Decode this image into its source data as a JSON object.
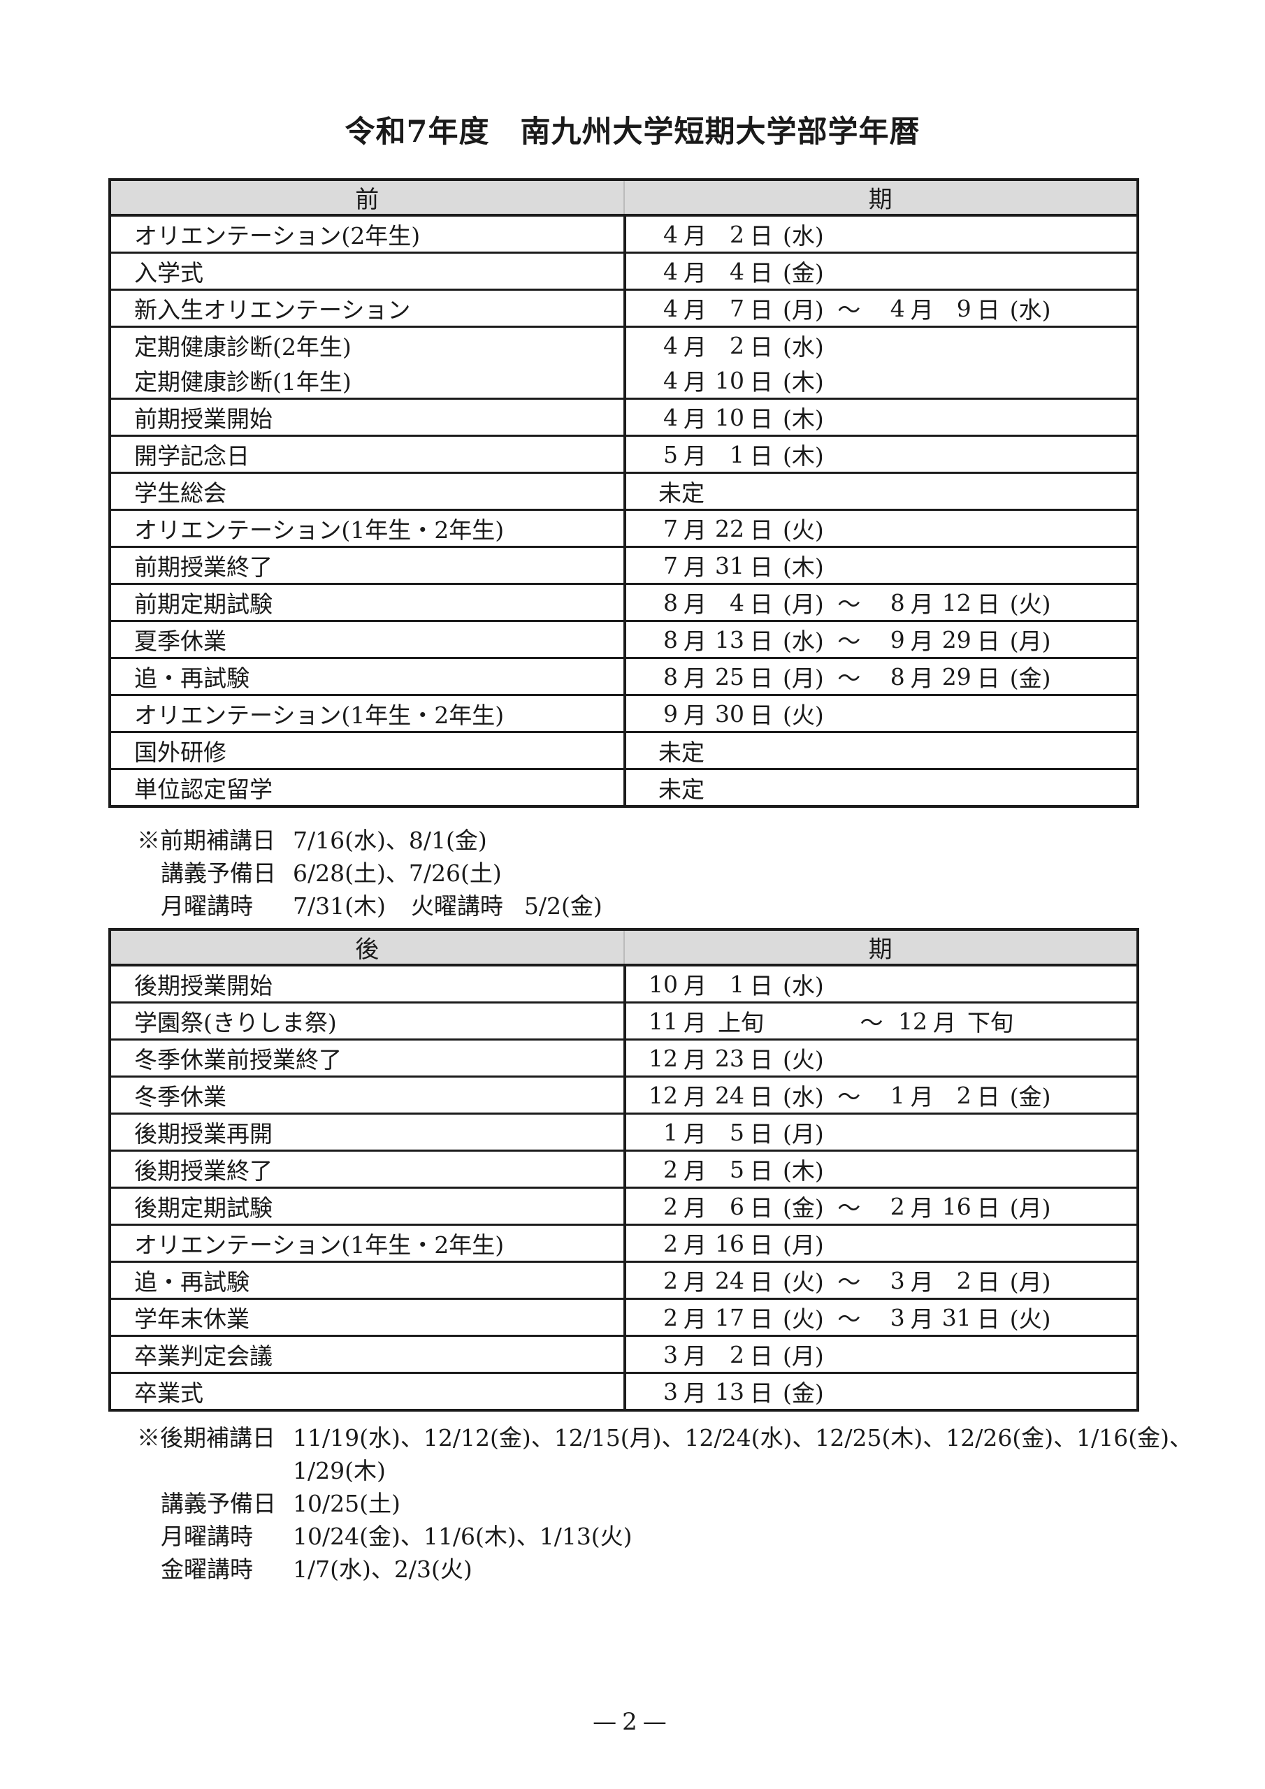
{
  "page": {
    "title": "令和7年度　南九州大学短期大学部学年暦",
    "page_number": "—2—"
  },
  "first_semester": {
    "header": {
      "left": "前",
      "right": "期"
    },
    "rows": [
      {
        "entries": [
          {
            "event": "オリエンテーション(2年生)",
            "date": [
              [
                "n",
                "4"
              ],
              [
                "u",
                "月"
              ],
              [
                "n",
                "2"
              ],
              [
                "u",
                "日"
              ],
              [
                "w",
                "(水)"
              ]
            ]
          }
        ]
      },
      {
        "entries": [
          {
            "event": "入学式",
            "date": [
              [
                "n",
                "4"
              ],
              [
                "u",
                "月"
              ],
              [
                "n",
                "4"
              ],
              [
                "u",
                "日"
              ],
              [
                "w",
                "(金)"
              ]
            ]
          }
        ]
      },
      {
        "entries": [
          {
            "event": "新入生オリエンテーション",
            "date": [
              [
                "n",
                "4"
              ],
              [
                "u",
                "月"
              ],
              [
                "n",
                "7"
              ],
              [
                "u",
                "日"
              ],
              [
                "w",
                "(月)"
              ],
              [
                "t",
                "～"
              ],
              [
                "n",
                "4"
              ],
              [
                "u",
                "月"
              ],
              [
                "n",
                "9"
              ],
              [
                "u",
                "日"
              ],
              [
                "w",
                "(水)"
              ]
            ]
          }
        ]
      },
      {
        "entries": [
          {
            "event": "定期健康診断(2年生)",
            "date": [
              [
                "n",
                "4"
              ],
              [
                "u",
                "月"
              ],
              [
                "n",
                "2"
              ],
              [
                "u",
                "日"
              ],
              [
                "w",
                "(水)"
              ]
            ]
          },
          {
            "event": "定期健康診断(1年生)",
            "date": [
              [
                "n",
                "4"
              ],
              [
                "u",
                "月"
              ],
              [
                "n",
                "10"
              ],
              [
                "u",
                "日"
              ],
              [
                "w",
                "(木)"
              ]
            ]
          }
        ]
      },
      {
        "entries": [
          {
            "event": "前期授業開始",
            "date": [
              [
                "n",
                "4"
              ],
              [
                "u",
                "月"
              ],
              [
                "n",
                "10"
              ],
              [
                "u",
                "日"
              ],
              [
                "w",
                "(木)"
              ]
            ]
          }
        ]
      },
      {
        "entries": [
          {
            "event": "開学記念日",
            "date": [
              [
                "n",
                "5"
              ],
              [
                "u",
                "月"
              ],
              [
                "n",
                "1"
              ],
              [
                "u",
                "日"
              ],
              [
                "w",
                "(木)"
              ]
            ]
          }
        ]
      },
      {
        "entries": [
          {
            "event": "学生総会",
            "date": [
              [
                "p",
                "未定"
              ]
            ]
          }
        ]
      },
      {
        "entries": [
          {
            "event": "オリエンテーション(1年生・2年生)",
            "date": [
              [
                "n",
                "7"
              ],
              [
                "u",
                "月"
              ],
              [
                "n",
                "22"
              ],
              [
                "u",
                "日"
              ],
              [
                "w",
                "(火)"
              ]
            ]
          }
        ]
      },
      {
        "entries": [
          {
            "event": "前期授業終了",
            "date": [
              [
                "n",
                "7"
              ],
              [
                "u",
                "月"
              ],
              [
                "n",
                "31"
              ],
              [
                "u",
                "日"
              ],
              [
                "w",
                "(木)"
              ]
            ]
          }
        ]
      },
      {
        "entries": [
          {
            "event": "前期定期試験",
            "date": [
              [
                "n",
                "8"
              ],
              [
                "u",
                "月"
              ],
              [
                "n",
                "4"
              ],
              [
                "u",
                "日"
              ],
              [
                "w",
                "(月)"
              ],
              [
                "t",
                "～"
              ],
              [
                "n",
                "8"
              ],
              [
                "u",
                "月"
              ],
              [
                "n",
                "12"
              ],
              [
                "u",
                "日"
              ],
              [
                "w",
                "(火)"
              ]
            ]
          }
        ]
      },
      {
        "entries": [
          {
            "event": "夏季休業",
            "date": [
              [
                "n",
                "8"
              ],
              [
                "u",
                "月"
              ],
              [
                "n",
                "13"
              ],
              [
                "u",
                "日"
              ],
              [
                "w",
                "(水)"
              ],
              [
                "t",
                "～"
              ],
              [
                "n",
                "9"
              ],
              [
                "u",
                "月"
              ],
              [
                "n",
                "29"
              ],
              [
                "u",
                "日"
              ],
              [
                "w",
                "(月)"
              ]
            ]
          }
        ]
      },
      {
        "entries": [
          {
            "event": "追・再試験",
            "date": [
              [
                "n",
                "8"
              ],
              [
                "u",
                "月"
              ],
              [
                "n",
                "25"
              ],
              [
                "u",
                "日"
              ],
              [
                "w",
                "(月)"
              ],
              [
                "t",
                "～"
              ],
              [
                "n",
                "8"
              ],
              [
                "u",
                "月"
              ],
              [
                "n",
                "29"
              ],
              [
                "u",
                "日"
              ],
              [
                "w",
                "(金)"
              ]
            ]
          }
        ]
      },
      {
        "entries": [
          {
            "event": "オリエンテーション(1年生・2年生)",
            "date": [
              [
                "n",
                "9"
              ],
              [
                "u",
                "月"
              ],
              [
                "n",
                "30"
              ],
              [
                "u",
                "日"
              ],
              [
                "w",
                "(火)"
              ]
            ]
          }
        ]
      },
      {
        "entries": [
          {
            "event": "国外研修",
            "date": [
              [
                "p",
                "未定"
              ]
            ]
          }
        ]
      },
      {
        "entries": [
          {
            "event": "単位認定留学",
            "date": [
              [
                "p",
                "未定"
              ]
            ]
          }
        ]
      }
    ],
    "notes": {
      "lines": [
        {
          "pairs": [
            {
              "label": "※前期補講日",
              "value": "7/16(水)、8/1(金)"
            }
          ]
        },
        {
          "pairs": [
            {
              "label": "講義予備日",
              "value": "6/28(土)、7/26(土)"
            }
          ]
        },
        {
          "pairs": [
            {
              "label": "月曜講時",
              "value": "7/31(木)"
            },
            {
              "label": "火曜講時",
              "value": "5/2(金)"
            }
          ]
        }
      ]
    }
  },
  "second_semester": {
    "header": {
      "left": "後",
      "right": "期"
    },
    "rows": [
      {
        "entries": [
          {
            "event": "後期授業開始",
            "date": [
              [
                "n",
                "10"
              ],
              [
                "u",
                "月"
              ],
              [
                "n",
                "1"
              ],
              [
                "u",
                "日"
              ],
              [
                "w",
                "(水)"
              ]
            ]
          }
        ]
      },
      {
        "entries": [
          {
            "event": "学園祭(きりしま祭)",
            "date": [
              [
                "n",
                "11"
              ],
              [
                "u",
                "月"
              ],
              [
                "x",
                "上旬"
              ],
              [
                "g",
                ""
              ],
              [
                "t",
                "～"
              ],
              [
                "n",
                "12"
              ],
              [
                "u",
                "月"
              ],
              [
                "x",
                "下旬"
              ]
            ]
          }
        ]
      },
      {
        "entries": [
          {
            "event": "冬季休業前授業終了",
            "date": [
              [
                "n",
                "12"
              ],
              [
                "u",
                "月"
              ],
              [
                "n",
                "23"
              ],
              [
                "u",
                "日"
              ],
              [
                "w",
                "(火)"
              ]
            ]
          }
        ]
      },
      {
        "entries": [
          {
            "event": "冬季休業",
            "date": [
              [
                "n",
                "12"
              ],
              [
                "u",
                "月"
              ],
              [
                "n",
                "24"
              ],
              [
                "u",
                "日"
              ],
              [
                "w",
                "(水)"
              ],
              [
                "t",
                "～"
              ],
              [
                "n",
                "1"
              ],
              [
                "u",
                "月"
              ],
              [
                "n",
                "2"
              ],
              [
                "u",
                "日"
              ],
              [
                "w",
                "(金)"
              ]
            ]
          }
        ]
      },
      {
        "entries": [
          {
            "event": "後期授業再開",
            "date": [
              [
                "n",
                "1"
              ],
              [
                "u",
                "月"
              ],
              [
                "n",
                "5"
              ],
              [
                "u",
                "日"
              ],
              [
                "w",
                "(月)"
              ]
            ]
          }
        ]
      },
      {
        "entries": [
          {
            "event": "後期授業終了",
            "date": [
              [
                "n",
                "2"
              ],
              [
                "u",
                "月"
              ],
              [
                "n",
                "5"
              ],
              [
                "u",
                "日"
              ],
              [
                "w",
                "(木)"
              ]
            ]
          }
        ]
      },
      {
        "entries": [
          {
            "event": "後期定期試験",
            "date": [
              [
                "n",
                "2"
              ],
              [
                "u",
                "月"
              ],
              [
                "n",
                "6"
              ],
              [
                "u",
                "日"
              ],
              [
                "w",
                "(金)"
              ],
              [
                "t",
                "～"
              ],
              [
                "n",
                "2"
              ],
              [
                "u",
                "月"
              ],
              [
                "n",
                "16"
              ],
              [
                "u",
                "日"
              ],
              [
                "w",
                "(月)"
              ]
            ]
          }
        ]
      },
      {
        "entries": [
          {
            "event": "オリエンテーション(1年生・2年生)",
            "date": [
              [
                "n",
                "2"
              ],
              [
                "u",
                "月"
              ],
              [
                "n",
                "16"
              ],
              [
                "u",
                "日"
              ],
              [
                "w",
                "(月)"
              ]
            ]
          }
        ]
      },
      {
        "entries": [
          {
            "event": "追・再試験",
            "date": [
              [
                "n",
                "2"
              ],
              [
                "u",
                "月"
              ],
              [
                "n",
                "24"
              ],
              [
                "u",
                "日"
              ],
              [
                "w",
                "(火)"
              ],
              [
                "t",
                "～"
              ],
              [
                "n",
                "3"
              ],
              [
                "u",
                "月"
              ],
              [
                "n",
                "2"
              ],
              [
                "u",
                "日"
              ],
              [
                "w",
                "(月)"
              ]
            ]
          }
        ]
      },
      {
        "entries": [
          {
            "event": "学年末休業",
            "date": [
              [
                "n",
                "2"
              ],
              [
                "u",
                "月"
              ],
              [
                "n",
                "17"
              ],
              [
                "u",
                "日"
              ],
              [
                "w",
                "(火)"
              ],
              [
                "t",
                "～"
              ],
              [
                "n",
                "3"
              ],
              [
                "u",
                "月"
              ],
              [
                "n",
                "31"
              ],
              [
                "u",
                "日"
              ],
              [
                "w",
                "(火)"
              ]
            ]
          }
        ]
      },
      {
        "entries": [
          {
            "event": "卒業判定会議",
            "date": [
              [
                "n",
                "3"
              ],
              [
                "u",
                "月"
              ],
              [
                "n",
                "2"
              ],
              [
                "u",
                "日"
              ],
              [
                "w",
                "(月)"
              ]
            ]
          }
        ]
      },
      {
        "entries": [
          {
            "event": "卒業式",
            "date": [
              [
                "n",
                "3"
              ],
              [
                "u",
                "月"
              ],
              [
                "n",
                "13"
              ],
              [
                "u",
                "日"
              ],
              [
                "w",
                "(金)"
              ]
            ]
          }
        ]
      }
    ],
    "notes": {
      "lines": [
        {
          "pairs": [
            {
              "label": "※後期補講日",
              "value": "11/19(水)、12/12(金)、12/15(月)、12/24(水)、12/25(木)、12/26(金)、1/16(金)、"
            }
          ]
        },
        {
          "pairs": [
            {
              "label": "",
              "value": "1/29(木)"
            }
          ]
        },
        {
          "pairs": [
            {
              "label": "講義予備日",
              "value": "10/25(土)"
            }
          ]
        },
        {
          "pairs": [
            {
              "label": "月曜講時",
              "value": "10/24(金)、11/6(木)、1/13(火)"
            }
          ]
        },
        {
          "pairs": [
            {
              "label": "金曜講時",
              "value": "1/7(水)、2/3(火)"
            }
          ]
        }
      ]
    }
  }
}
